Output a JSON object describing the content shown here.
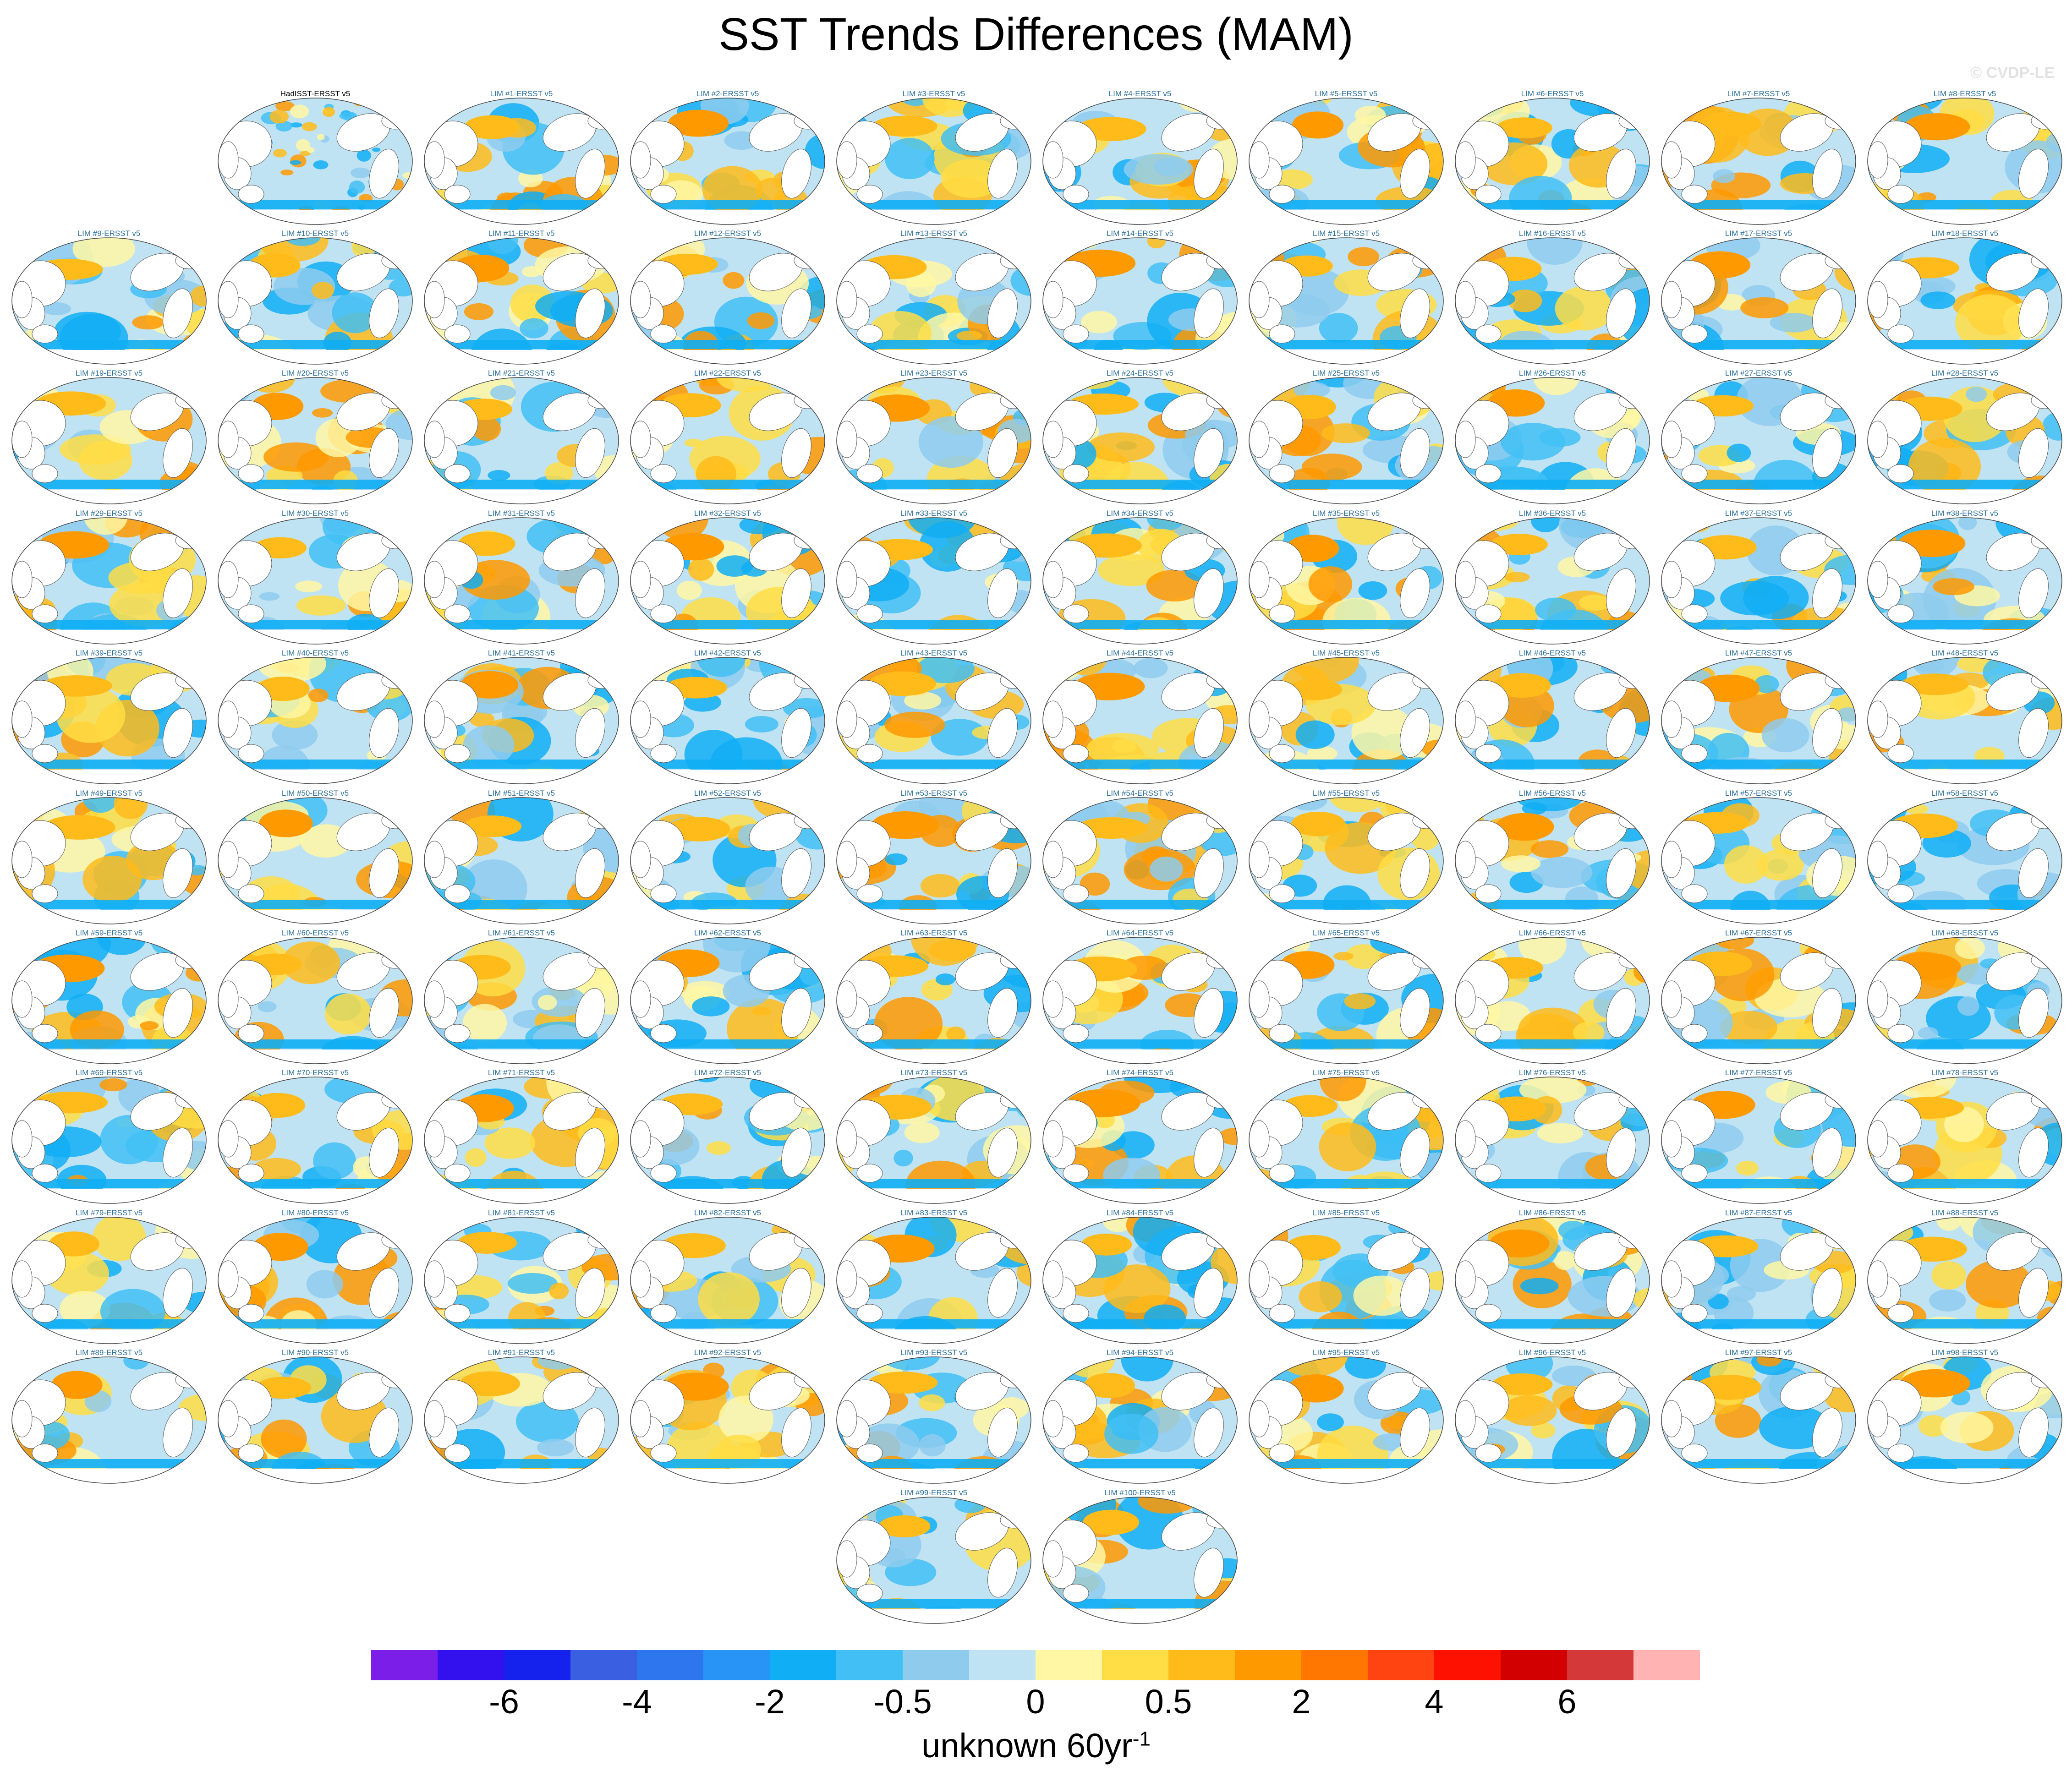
{
  "title": "SST Trends Differences (MAM)",
  "watermark": "© CVDP-LE",
  "chart_data": {
    "type": "heatmap",
    "title": "SST Trends Differences (MAM)",
    "projection": "global ocean map (Robinson-like), one map per panel",
    "panels": [
      "HadISST-ERSST v5",
      "LIM #1-ERSST v5",
      "LIM #2-ERSST v5",
      "LIM #3-ERSST v5",
      "LIM #4-ERSST v5",
      "LIM #5-ERSST v5",
      "LIM #6-ERSST v5",
      "LIM #7-ERSST v5",
      "LIM #8-ERSST v5",
      "LIM #9-ERSST v5",
      "LIM #10-ERSST v5",
      "LIM #11-ERSST v5",
      "LIM #12-ERSST v5",
      "LIM #13-ERSST v5",
      "LIM #14-ERSST v5",
      "LIM #15-ERSST v5",
      "LIM #16-ERSST v5",
      "LIM #17-ERSST v5",
      "LIM #18-ERSST v5",
      "LIM #19-ERSST v5",
      "LIM #20-ERSST v5",
      "LIM #21-ERSST v5",
      "LIM #22-ERSST v5",
      "LIM #23-ERSST v5",
      "LIM #24-ERSST v5",
      "LIM #25-ERSST v5",
      "LIM #26-ERSST v5",
      "LIM #27-ERSST v5",
      "LIM #28-ERSST v5",
      "LIM #29-ERSST v5",
      "LIM #30-ERSST v5",
      "LIM #31-ERSST v5",
      "LIM #32-ERSST v5",
      "LIM #33-ERSST v5",
      "LIM #34-ERSST v5",
      "LIM #35-ERSST v5",
      "LIM #36-ERSST v5",
      "LIM #37-ERSST v5",
      "LIM #38-ERSST v5",
      "LIM #39-ERSST v5",
      "LIM #40-ERSST v5",
      "LIM #41-ERSST v5",
      "LIM #42-ERSST v5",
      "LIM #43-ERSST v5",
      "LIM #44-ERSST v5",
      "LIM #45-ERSST v5",
      "LIM #46-ERSST v5",
      "LIM #47-ERSST v5",
      "LIM #48-ERSST v5",
      "LIM #49-ERSST v5",
      "LIM #50-ERSST v5",
      "LIM #51-ERSST v5",
      "LIM #52-ERSST v5",
      "LIM #53-ERSST v5",
      "LIM #54-ERSST v5",
      "LIM #55-ERSST v5",
      "LIM #56-ERSST v5",
      "LIM #57-ERSST v5",
      "LIM #58-ERSST v5",
      "LIM #59-ERSST v5",
      "LIM #60-ERSST v5",
      "LIM #61-ERSST v5",
      "LIM #62-ERSST v5",
      "LIM #63-ERSST v5",
      "LIM #64-ERSST v5",
      "LIM #65-ERSST v5",
      "LIM #66-ERSST v5",
      "LIM #67-ERSST v5",
      "LIM #68-ERSST v5",
      "LIM #69-ERSST v5",
      "LIM #70-ERSST v5",
      "LIM #71-ERSST v5",
      "LIM #72-ERSST v5",
      "LIM #73-ERSST v5",
      "LIM #74-ERSST v5",
      "LIM #75-ERSST v5",
      "LIM #76-ERSST v5",
      "LIM #77-ERSST v5",
      "LIM #78-ERSST v5",
      "LIM #79-ERSST v5",
      "LIM #80-ERSST v5",
      "LIM #81-ERSST v5",
      "LIM #82-ERSST v5",
      "LIM #83-ERSST v5",
      "LIM #84-ERSST v5",
      "LIM #85-ERSST v5",
      "LIM #86-ERSST v5",
      "LIM #87-ERSST v5",
      "LIM #88-ERSST v5",
      "LIM #89-ERSST v5",
      "LIM #90-ERSST v5",
      "LIM #91-ERSST v5",
      "LIM #92-ERSST v5",
      "LIM #93-ERSST v5",
      "LIM #94-ERSST v5",
      "LIM #95-ERSST v5",
      "LIM #96-ERSST v5",
      "LIM #97-ERSST v5",
      "LIM #98-ERSST v5",
      "LIM #99-ERSST v5",
      "LIM #100-ERSST v5"
    ],
    "colorbar": {
      "colors": [
        "#7b1fe8",
        "#3311ee",
        "#1522ee",
        "#3a5fe0",
        "#2d76ee",
        "#2894f5",
        "#10aef5",
        "#42c0f5",
        "#8ecbed",
        "#bfe3f3",
        "#fff7a3",
        "#ffdd44",
        "#ffbb1a",
        "#ff9900",
        "#ff7700",
        "#ff4411",
        "#ff1100",
        "#d20000",
        "#d43838",
        "#ffb3b3"
      ],
      "tick_labels": [
        "-6",
        "-4",
        "-2",
        "-0.5",
        "0",
        "0.5",
        "2",
        "4",
        "6"
      ],
      "units_main": "unknown 60yr",
      "units_exp": "-1"
    }
  }
}
